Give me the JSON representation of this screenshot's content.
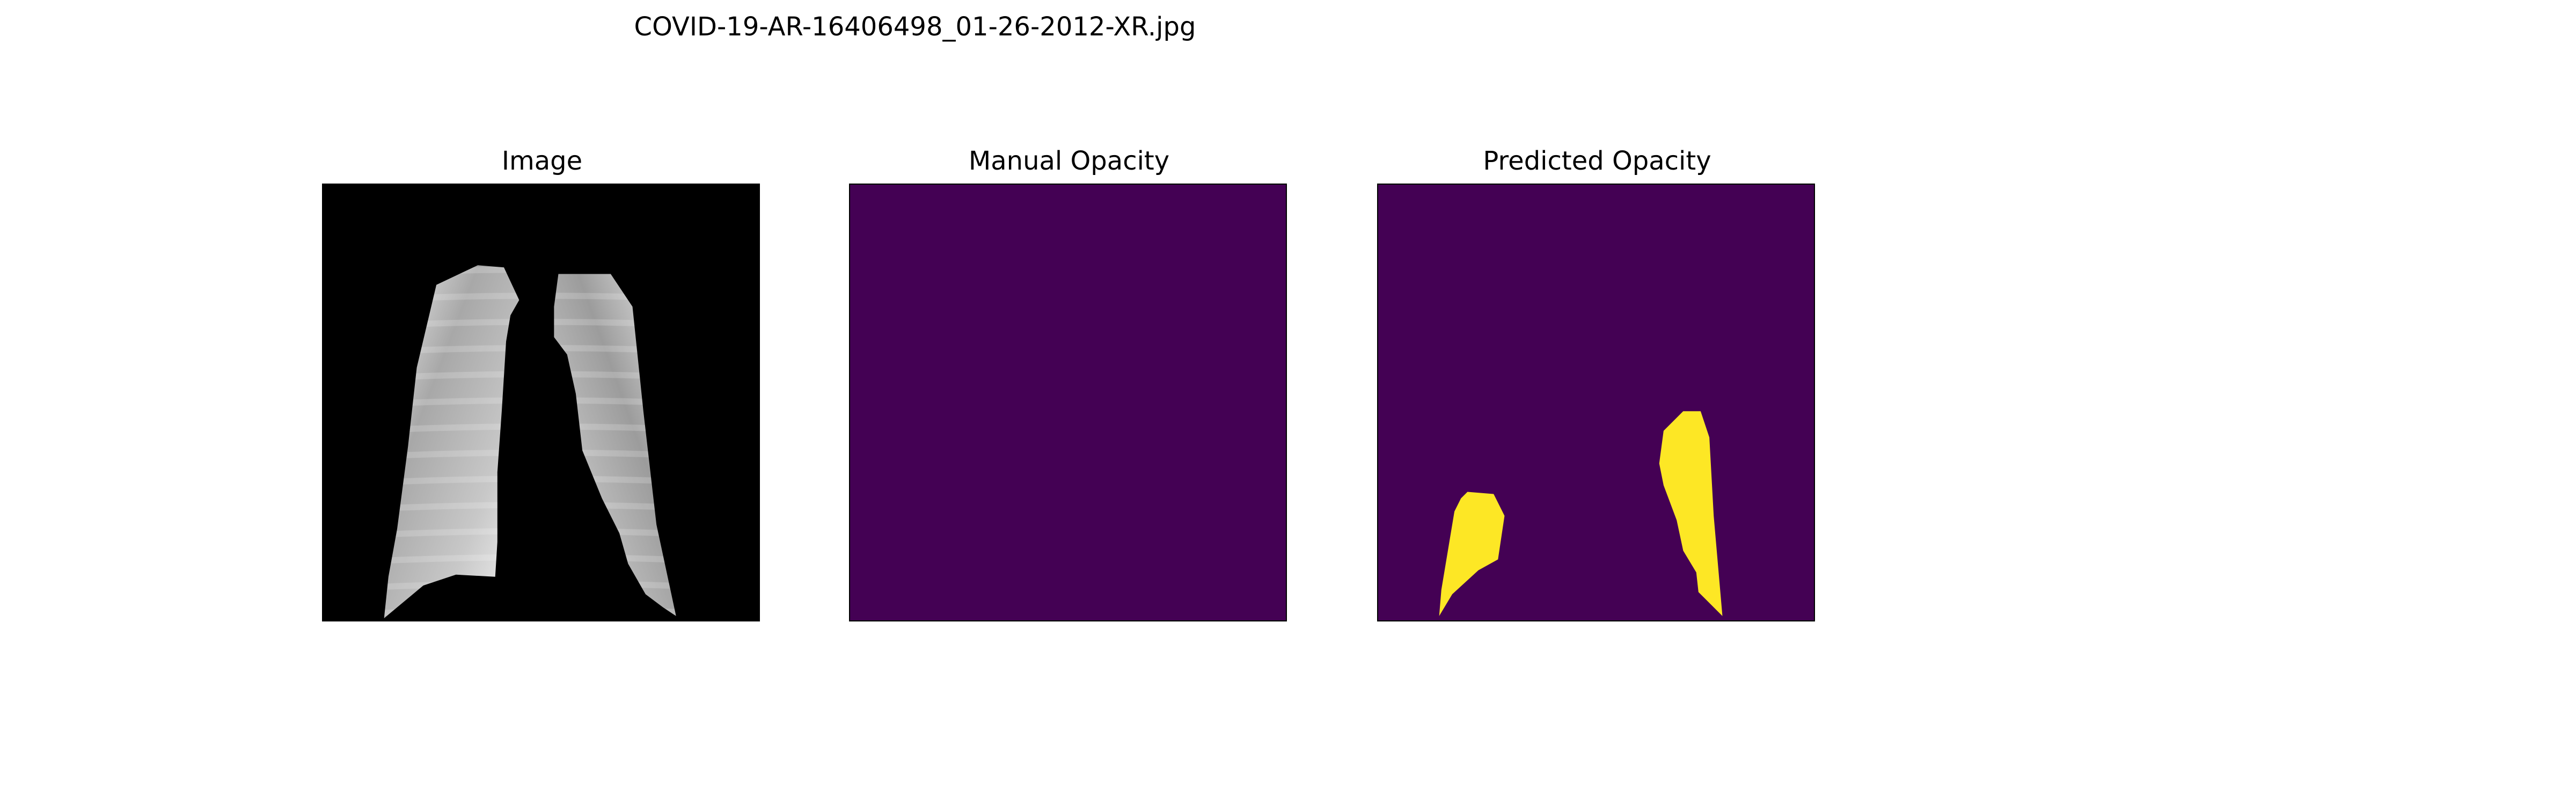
{
  "figure": {
    "title": "COVID-19-AR-16406498_01-26-2012-XR.jpg"
  },
  "panels": [
    {
      "title": "Image",
      "content": "chest-xray-lung-crop",
      "background_color": "#000000"
    },
    {
      "title": "Manual Opacity",
      "content": "empty-mask",
      "background_color": "#440154"
    },
    {
      "title": "Predicted Opacity",
      "content": "predicted-opacity-mask",
      "background_color": "#440154",
      "foreground_color": "#fde725"
    }
  ]
}
